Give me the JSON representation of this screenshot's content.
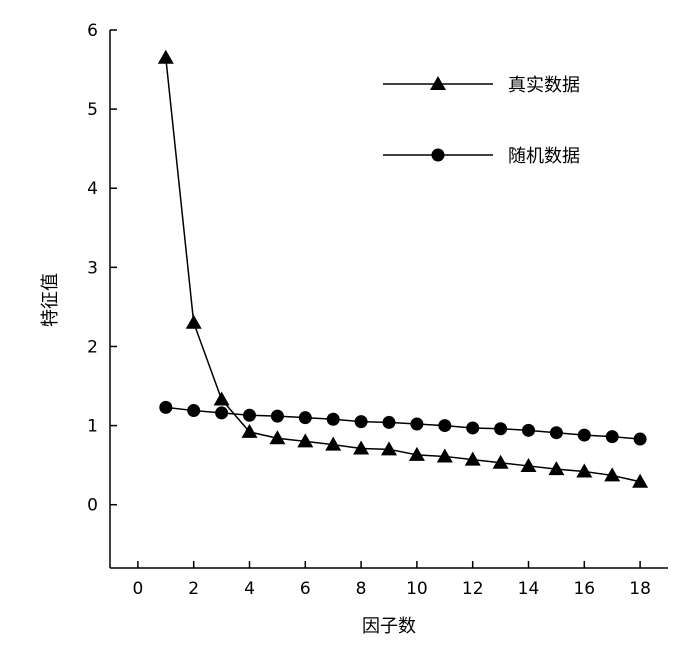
{
  "chart_data": {
    "type": "line",
    "xlabel": "因子数",
    "ylabel": "特征值",
    "xlim": [
      -1,
      19
    ],
    "ylim": [
      -0.8,
      6
    ],
    "x_ticks": [
      0,
      2,
      4,
      6,
      8,
      10,
      12,
      14,
      16,
      18
    ],
    "y_ticks": [
      0,
      1,
      2,
      3,
      4,
      5,
      6
    ],
    "grid": false,
    "legend_position": "top-right",
    "x": [
      1,
      2,
      3,
      4,
      5,
      6,
      7,
      8,
      9,
      10,
      11,
      12,
      13,
      14,
      15,
      16,
      17,
      18
    ],
    "series": [
      {
        "name": "真实数据",
        "marker": "triangle",
        "values": [
          5.65,
          2.3,
          1.33,
          0.92,
          0.84,
          0.8,
          0.76,
          0.71,
          0.7,
          0.63,
          0.61,
          0.57,
          0.53,
          0.49,
          0.45,
          0.42,
          0.37,
          0.29
        ]
      },
      {
        "name": "随机数据",
        "marker": "circle",
        "values": [
          1.23,
          1.19,
          1.16,
          1.13,
          1.12,
          1.1,
          1.08,
          1.05,
          1.04,
          1.02,
          1.0,
          0.97,
          0.96,
          0.94,
          0.91,
          0.88,
          0.86,
          0.83
        ]
      }
    ]
  }
}
